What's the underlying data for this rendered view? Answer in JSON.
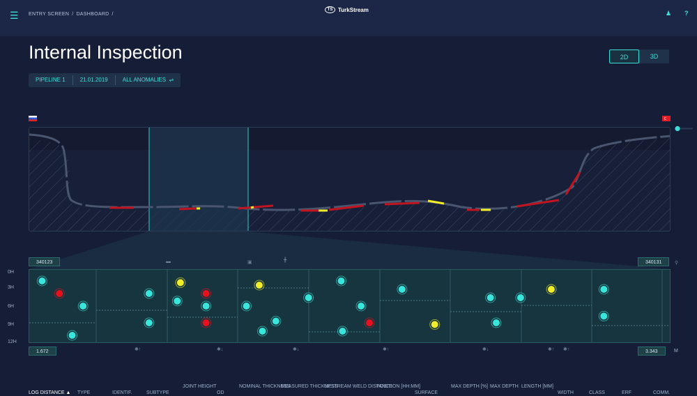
{
  "breadcrumb": [
    "ENTRY SCREEN",
    "DASHBOARD"
  ],
  "brand": {
    "name": "TurkStream",
    "mark": "TS"
  },
  "page_title": "Internal Inspection",
  "filters": {
    "pipeline": "PIPELINE 1",
    "date": "21.01.2019",
    "anomalies": "ALL ANOMALIES"
  },
  "view_toggle": {
    "option_2d": "2D",
    "option_3d": "3D",
    "selected": "2D"
  },
  "range": {
    "start_id": "340123",
    "end_id": "340131",
    "start_km": "1.672",
    "end_km": "3.343"
  },
  "clock_axis": [
    "0H",
    "3H",
    "6H",
    "9H",
    "12H"
  ],
  "unit_label": "M",
  "colors": {
    "accent": "#3de0d8",
    "critical": "#e8101c",
    "warning": "#f2ee2a",
    "normal": "#4a5570"
  },
  "anomalies": [
    {
      "x": 0.02,
      "clock": 0.5,
      "severity": "normal"
    },
    {
      "x": 0.047,
      "clock": 1.25,
      "severity": "critical"
    },
    {
      "x": 0.084,
      "clock": 2.0,
      "severity": "normal"
    },
    {
      "x": 0.067,
      "clock": 3.75,
      "severity": "normal"
    },
    {
      "x": 0.187,
      "clock": 1.25,
      "severity": "normal"
    },
    {
      "x": 0.187,
      "clock": 3.0,
      "severity": "normal"
    },
    {
      "x": 0.236,
      "clock": 0.6,
      "severity": "warning"
    },
    {
      "x": 0.231,
      "clock": 1.7,
      "severity": "normal"
    },
    {
      "x": 0.276,
      "clock": 1.25,
      "severity": "critical"
    },
    {
      "x": 0.276,
      "clock": 2.0,
      "severity": "normal"
    },
    {
      "x": 0.276,
      "clock": 3.0,
      "severity": "critical"
    },
    {
      "x": 0.359,
      "clock": 0.75,
      "severity": "warning"
    },
    {
      "x": 0.339,
      "clock": 2.0,
      "severity": "normal"
    },
    {
      "x": 0.385,
      "clock": 2.9,
      "severity": "normal"
    },
    {
      "x": 0.364,
      "clock": 3.5,
      "severity": "normal"
    },
    {
      "x": 0.436,
      "clock": 1.5,
      "severity": "normal"
    },
    {
      "x": 0.487,
      "clock": 0.5,
      "severity": "normal"
    },
    {
      "x": 0.518,
      "clock": 2.0,
      "severity": "normal"
    },
    {
      "x": 0.489,
      "clock": 3.5,
      "severity": "normal"
    },
    {
      "x": 0.531,
      "clock": 3.0,
      "severity": "critical"
    },
    {
      "x": 0.582,
      "clock": 1.0,
      "severity": "normal"
    },
    {
      "x": 0.633,
      "clock": 3.1,
      "severity": "warning"
    },
    {
      "x": 0.72,
      "clock": 1.5,
      "severity": "normal"
    },
    {
      "x": 0.729,
      "clock": 3.0,
      "severity": "normal"
    },
    {
      "x": 0.767,
      "clock": 1.5,
      "severity": "normal"
    },
    {
      "x": 0.815,
      "clock": 1.0,
      "severity": "warning"
    },
    {
      "x": 0.897,
      "clock": 1.0,
      "severity": "normal"
    },
    {
      "x": 0.897,
      "clock": 2.6,
      "severity": "normal"
    }
  ],
  "table_headers": [
    "LOG DISTANCE ▲",
    "TYPE",
    "IDENTIF.",
    "SUBTYPE",
    "JOINT HEIGHT",
    "OD",
    "NOMINAL THICKNESS",
    "MEASURED THICKNESS",
    "UPSTREAM WELD DISTANCE",
    "POSITION [HH:MM]",
    "SURFACE",
    "MAX DEPTH [%]",
    "MAX DEPTH",
    "LENGTH [MM]",
    "WIDTH",
    "CLASS",
    "ERF",
    "COMM."
  ]
}
